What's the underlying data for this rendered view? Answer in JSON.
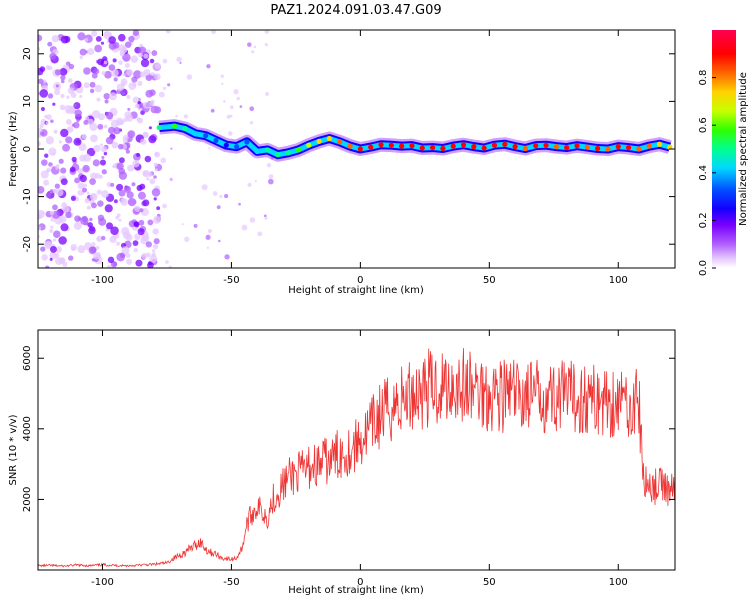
{
  "title": "PAZ1.2024.091.03.47.G09",
  "chart_data": [
    {
      "type": "heatmap",
      "xlabel": "Height of straight line (km)",
      "ylabel": "Frequency (Hz)",
      "xlim": [
        -125,
        122
      ],
      "ylim": [
        -25,
        25
      ],
      "x_ticks": [
        -100,
        -50,
        0,
        50,
        100
      ],
      "y_ticks": [
        -20,
        -10,
        0,
        10,
        20
      ],
      "colorbar": {
        "label": "Normalized spectral amplitude",
        "range": [
          0,
          1
        ],
        "ticks": [
          0.0,
          0.2,
          0.4,
          0.6,
          0.8
        ],
        "colors": [
          "#ffffff",
          "#e6c8ff",
          "#b060ff",
          "#7a00ff",
          "#1400ff",
          "#0050ff",
          "#00d8ff",
          "#00ff90",
          "#30ff00",
          "#c8ff00",
          "#ffd200",
          "#ff6400",
          "#ff0000",
          "#ff0050"
        ]
      },
      "trace": {
        "x": [
          -78,
          -72,
          -68,
          -64,
          -60,
          -56,
          -52,
          -48,
          -44,
          -40,
          -36,
          -32,
          -28,
          -24,
          -20,
          -16,
          -12,
          -8,
          -4,
          0,
          4,
          8,
          12,
          16,
          20,
          24,
          28,
          32,
          36,
          40,
          44,
          48,
          52,
          56,
          60,
          64,
          68,
          72,
          76,
          80,
          84,
          88,
          92,
          96,
          100,
          104,
          108,
          112,
          116,
          120
        ],
        "y": [
          4.5,
          4.8,
          4.3,
          3.2,
          2.8,
          1.8,
          0.8,
          0.5,
          1.5,
          -0.5,
          -0.2,
          -1.2,
          -0.8,
          -0.2,
          0.8,
          1.6,
          2.2,
          1.5,
          0.6,
          0.0,
          0.4,
          0.9,
          0.8,
          0.6,
          0.7,
          0.2,
          0.3,
          0.1,
          0.6,
          0.9,
          0.5,
          0.2,
          0.8,
          1.0,
          0.5,
          0.1,
          0.7,
          0.8,
          0.5,
          0.3,
          0.7,
          0.4,
          0.1,
          0.0,
          0.5,
          0.3,
          0.0,
          0.6,
          1.0,
          0.4
        ],
        "amplitude": [
          0.55,
          0.6,
          0.5,
          0.45,
          0.4,
          0.35,
          0.3,
          0.35,
          0.4,
          0.45,
          0.5,
          0.5,
          0.55,
          0.6,
          0.7,
          0.75,
          0.8,
          0.85,
          0.85,
          0.9,
          0.9,
          0.95,
          0.92,
          0.95,
          0.95,
          0.92,
          0.95,
          0.9,
          0.95,
          0.92,
          0.9,
          0.95,
          0.9,
          0.92,
          0.9,
          0.88,
          0.9,
          0.92,
          0.88,
          0.9,
          0.9,
          0.88,
          0.9,
          0.88,
          0.9,
          0.92,
          0.88,
          0.85,
          0.8,
          0.75
        ]
      }
    },
    {
      "type": "line",
      "xlabel": "Height of straight line (km)",
      "ylabel": "SNR (10 * v/v)",
      "xlim": [
        -125,
        122
      ],
      "ylim": [
        0,
        6800
      ],
      "x_ticks": [
        -100,
        -50,
        0,
        50,
        100
      ],
      "y_ticks": [
        2000,
        4000,
        6000
      ],
      "color": "#ee3333",
      "series": [
        {
          "x": [
            -125,
            -120,
            -115,
            -110,
            -105,
            -100,
            -95,
            -90,
            -85,
            -80,
            -75,
            -72,
            -70,
            -68,
            -66,
            -64,
            -62,
            -60,
            -58,
            -56,
            -54,
            -52,
            -50,
            -48,
            -46,
            -44,
            -42,
            -40,
            -38,
            -36,
            -34,
            -32,
            -30,
            -28,
            -26,
            -24,
            -22,
            -20,
            -18,
            -16,
            -14,
            -12,
            -10,
            -8,
            -6,
            -4,
            -2,
            0,
            2,
            4,
            6,
            8,
            10,
            12,
            14,
            16,
            18,
            20,
            22,
            24,
            26,
            28,
            30,
            32,
            34,
            36,
            38,
            40,
            42,
            44,
            46,
            48,
            50,
            52,
            54,
            56,
            58,
            60,
            62,
            64,
            66,
            68,
            70,
            72,
            74,
            76,
            78,
            80,
            82,
            84,
            86,
            88,
            90,
            92,
            94,
            96,
            98,
            100,
            102,
            104,
            106,
            108,
            110,
            112,
            114,
            116,
            118,
            120
          ],
          "y": [
            120,
            130,
            110,
            140,
            120,
            150,
            130,
            120,
            140,
            160,
            200,
            350,
            420,
            500,
            600,
            700,
            800,
            600,
            500,
            450,
            350,
            320,
            300,
            350,
            600,
            1300,
            1600,
            1800,
            1650,
            1500,
            2000,
            2200,
            2400,
            2600,
            2700,
            2750,
            2800,
            2900,
            3000,
            2950,
            3100,
            3050,
            3200,
            3300,
            3350,
            3400,
            3500,
            3700,
            3800,
            4000,
            4200,
            4400,
            4500,
            4600,
            4700,
            4800,
            4900,
            5000,
            5050,
            5100,
            5150,
            5200,
            5150,
            5250,
            5200,
            5300,
            5250,
            5200,
            5150,
            5100,
            5100,
            5050,
            5000,
            5050,
            5000,
            4950,
            5000,
            4950,
            4900,
            5000,
            4950,
            4900,
            5000,
            4950,
            4900,
            4950,
            4900,
            4850,
            4900,
            4850,
            4900,
            4850,
            4800,
            4850,
            4800,
            4750,
            4800,
            4750,
            4800,
            4700,
            4750,
            4700,
            2400,
            2450,
            2350,
            2400,
            2350,
            2300
          ]
        }
      ]
    }
  ]
}
